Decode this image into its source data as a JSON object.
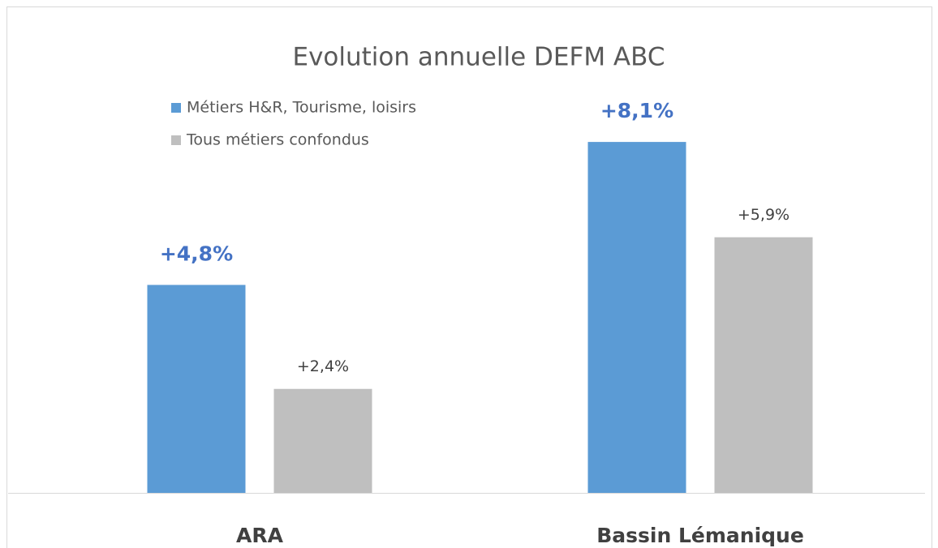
{
  "chart_data": {
    "type": "bar",
    "title": "Evolution annuelle DEFM ABC",
    "categories": [
      "ARA",
      "Bassin Lémanique"
    ],
    "series": [
      {
        "name": "Métiers H&R, Tourisme, loisirs",
        "color": "#5b9bd5",
        "values": [
          4.8,
          8.1
        ],
        "value_labels": [
          "+4,8%",
          "+8,1%"
        ]
      },
      {
        "name": "Tous métiers confondus",
        "color": "#bfbfbf",
        "values": [
          2.4,
          5.9
        ],
        "value_labels": [
          "+2,4%",
          "+5,9%"
        ]
      }
    ],
    "ylim": [
      0,
      9
    ],
    "legend": "top-left"
  }
}
